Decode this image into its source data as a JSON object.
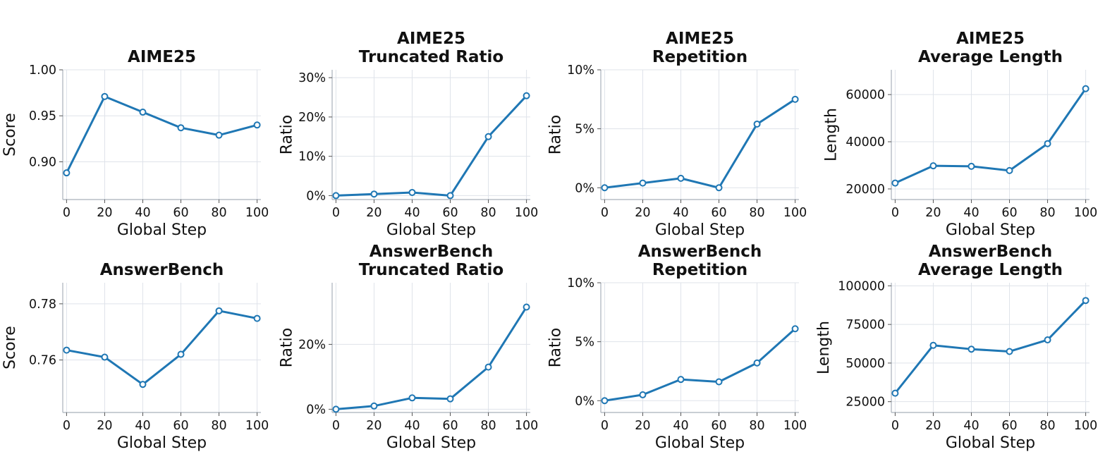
{
  "colors": {
    "series": "#1f77b4",
    "grid": "#dfe3ea",
    "axis": "#a9b0ba"
  },
  "chart_data": [
    {
      "type": "line",
      "title": "AIME25",
      "xlabel": "Global Step",
      "ylabel": "Score",
      "x": [
        0,
        20,
        40,
        60,
        80,
        100
      ],
      "series": [
        {
          "values": [
            0.888,
            0.971,
            0.954,
            0.937,
            0.929,
            0.94
          ]
        }
      ],
      "xlim": [
        -2,
        102
      ],
      "ylim": [
        0.859,
        1.0
      ],
      "xticks": [
        0,
        20,
        40,
        60,
        80,
        100
      ],
      "yticks": [
        0.9,
        0.95,
        1.0
      ],
      "ytick_labels": [
        "0.90",
        "0.95",
        "1.00"
      ],
      "grid": true
    },
    {
      "type": "line",
      "title": "AIME25\nTruncated Ratio",
      "xlabel": "Global Step",
      "ylabel": "Ratio",
      "x": [
        0,
        20,
        40,
        60,
        80,
        100
      ],
      "series": [
        {
          "values": [
            0.0,
            0.004,
            0.008,
            0.0,
            0.15,
            0.254
          ]
        }
      ],
      "xlim": [
        -2,
        102
      ],
      "ylim": [
        -0.01,
        0.32
      ],
      "xticks": [
        0,
        20,
        40,
        60,
        80,
        100
      ],
      "yticks": [
        0.0,
        0.1,
        0.2,
        0.3
      ],
      "ytick_labels": [
        "0%",
        "10%",
        "20%",
        "30%"
      ],
      "grid": true
    },
    {
      "type": "line",
      "title": "AIME25\nRepetition",
      "xlabel": "Global Step",
      "ylabel": "Ratio",
      "x": [
        0,
        20,
        40,
        60,
        80,
        100
      ],
      "series": [
        {
          "values": [
            0.0,
            0.004,
            0.008,
            0.0,
            0.054,
            0.075
          ]
        }
      ],
      "xlim": [
        -2,
        102
      ],
      "ylim": [
        -0.01,
        0.1
      ],
      "xticks": [
        0,
        20,
        40,
        60,
        80,
        100
      ],
      "yticks": [
        0.0,
        0.05,
        0.1
      ],
      "ytick_labels": [
        "0%",
        "5%",
        "10%"
      ],
      "grid": true
    },
    {
      "type": "line",
      "title": "AIME25\nAverage Length",
      "xlabel": "Global Step",
      "ylabel": "Length",
      "x": [
        0,
        20,
        40,
        60,
        80,
        100
      ],
      "series": [
        {
          "values": [
            22500,
            29800,
            29600,
            27800,
            39200,
            62500
          ]
        }
      ],
      "xlim": [
        -2,
        102
      ],
      "ylim": [
        15500,
        70500
      ],
      "xticks": [
        0,
        20,
        40,
        60,
        80,
        100
      ],
      "yticks": [
        20000,
        40000,
        60000
      ],
      "ytick_labels": [
        "20000",
        "40000",
        "60000"
      ],
      "grid": true
    },
    {
      "type": "line",
      "title": "AnswerBench",
      "xlabel": "Global Step",
      "ylabel": "Score",
      "x": [
        0,
        20,
        40,
        60,
        80,
        100
      ],
      "series": [
        {
          "values": [
            0.7635,
            0.761,
            0.7513,
            0.762,
            0.7775,
            0.7748
          ]
        }
      ],
      "xlim": [
        -2,
        102
      ],
      "ylim": [
        0.7413,
        0.7875
      ],
      "xticks": [
        0,
        20,
        40,
        60,
        80,
        100
      ],
      "yticks": [
        0.76,
        0.78
      ],
      "ytick_labels": [
        "0.76",
        "0.78"
      ],
      "grid": true
    },
    {
      "type": "line",
      "title": "AnswerBench\nTruncated Ratio",
      "xlabel": "Global Step",
      "ylabel": "Ratio",
      "x": [
        0,
        20,
        40,
        60,
        80,
        100
      ],
      "series": [
        {
          "values": [
            0.0,
            0.01,
            0.035,
            0.032,
            0.13,
            0.315
          ]
        }
      ],
      "xlim": [
        -2,
        102
      ],
      "ylim": [
        -0.01,
        0.39
      ],
      "xticks": [
        0,
        20,
        40,
        60,
        80,
        100
      ],
      "yticks": [
        0.0,
        0.2
      ],
      "ytick_labels": [
        "0%",
        "20%"
      ],
      "grid": true
    },
    {
      "type": "line",
      "title": "AnswerBench\nRepetition",
      "xlabel": "Global Step",
      "ylabel": "Ratio",
      "x": [
        0,
        20,
        40,
        60,
        80,
        100
      ],
      "series": [
        {
          "values": [
            0.0,
            0.005,
            0.018,
            0.016,
            0.032,
            0.061
          ]
        }
      ],
      "xlim": [
        -2,
        102
      ],
      "ylim": [
        -0.01,
        0.1
      ],
      "xticks": [
        0,
        20,
        40,
        60,
        80,
        100
      ],
      "yticks": [
        0.0,
        0.05,
        0.1
      ],
      "ytick_labels": [
        "0%",
        "5%",
        "10%"
      ],
      "grid": true
    },
    {
      "type": "line",
      "title": "AnswerBench\nAverage Length",
      "xlabel": "Global Step",
      "ylabel": "Length",
      "x": [
        0,
        20,
        40,
        60,
        80,
        100
      ],
      "series": [
        {
          "values": [
            30500,
            61500,
            59000,
            57500,
            65000,
            90500
          ]
        }
      ],
      "xlim": [
        -2,
        102
      ],
      "ylim": [
        18000,
        102000
      ],
      "xticks": [
        0,
        20,
        40,
        60,
        80,
        100
      ],
      "yticks": [
        25000,
        50000,
        75000,
        100000
      ],
      "ytick_labels": [
        "25000",
        "50000",
        "75000",
        "100000"
      ],
      "grid": true
    }
  ]
}
